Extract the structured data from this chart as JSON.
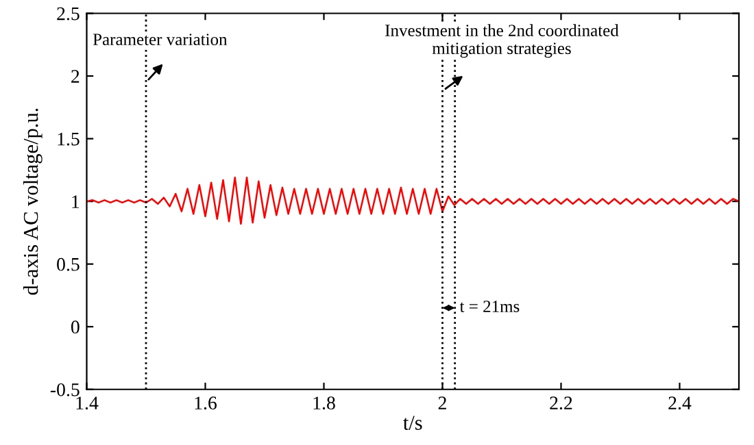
{
  "chart_data": {
    "type": "line",
    "xlabel": "t/s",
    "ylabel": "d-axis AC voltage/p.u.",
    "xlim": [
      1.4,
      2.5
    ],
    "xticks": [
      1.4,
      1.6,
      1.8,
      2,
      2.2,
      2.4
    ],
    "ylim": [
      -0.5,
      2.5
    ],
    "yticks": [
      -0.5,
      0,
      0.5,
      1,
      1.5,
      2,
      2.5
    ],
    "grid": false,
    "marker": "none",
    "line_style": "solid",
    "x": [
      1.4,
      1.41,
      1.42,
      1.43,
      1.44,
      1.45,
      1.46,
      1.47,
      1.48,
      1.49,
      1.5,
      1.51,
      1.52,
      1.53,
      1.54,
      1.55,
      1.56,
      1.57,
      1.58,
      1.59,
      1.6,
      1.61,
      1.62,
      1.63,
      1.64,
      1.65,
      1.66,
      1.67,
      1.68,
      1.69,
      1.7,
      1.71,
      1.72,
      1.73,
      1.74,
      1.75,
      1.76,
      1.77,
      1.78,
      1.79,
      1.8,
      1.81,
      1.82,
      1.83,
      1.84,
      1.85,
      1.86,
      1.87,
      1.88,
      1.89,
      1.9,
      1.91,
      1.92,
      1.93,
      1.94,
      1.95,
      1.96,
      1.97,
      1.98,
      1.99,
      2.0,
      2.01,
      2.02,
      2.03,
      2.04,
      2.05,
      2.06,
      2.07,
      2.08,
      2.09,
      2.1,
      2.11,
      2.12,
      2.13,
      2.14,
      2.15,
      2.16,
      2.17,
      2.18,
      2.19,
      2.2,
      2.21,
      2.22,
      2.23,
      2.24,
      2.25,
      2.26,
      2.27,
      2.28,
      2.29,
      2.3,
      2.31,
      2.32,
      2.33,
      2.34,
      2.35,
      2.36,
      2.37,
      2.38,
      2.39,
      2.4,
      2.41,
      2.42,
      2.43,
      2.44,
      2.45,
      2.46,
      2.47,
      2.48,
      2.49,
      2.5
    ],
    "series": [
      {
        "color": "#ff0000",
        "values": [
          1.0,
          1.01,
          0.99,
          1.01,
          0.99,
          1.01,
          0.99,
          1.01,
          0.99,
          1.01,
          0.99,
          1.02,
          0.98,
          1.03,
          0.96,
          1.06,
          0.92,
          1.1,
          0.9,
          1.13,
          0.88,
          1.15,
          0.86,
          1.17,
          0.84,
          1.19,
          0.82,
          1.19,
          0.83,
          1.16,
          0.87,
          1.13,
          0.89,
          1.11,
          0.9,
          1.1,
          0.9,
          1.1,
          0.9,
          1.1,
          0.9,
          1.1,
          0.9,
          1.1,
          0.9,
          1.1,
          0.9,
          1.1,
          0.9,
          1.1,
          0.9,
          1.1,
          0.9,
          1.11,
          0.9,
          1.1,
          0.9,
          1.1,
          0.9,
          1.1,
          0.92,
          1.04,
          0.97,
          1.02,
          0.98,
          1.02,
          0.98,
          1.02,
          0.98,
          1.02,
          0.98,
          1.02,
          0.98,
          1.02,
          0.98,
          1.02,
          0.98,
          1.02,
          0.98,
          1.02,
          0.98,
          1.02,
          0.98,
          1.02,
          0.98,
          1.02,
          0.98,
          1.02,
          0.98,
          1.02,
          0.98,
          1.02,
          0.98,
          1.02,
          0.98,
          1.02,
          0.98,
          1.02,
          0.98,
          1.02,
          0.98,
          1.02,
          0.98,
          1.02,
          0.98,
          1.02,
          0.98,
          1.02,
          0.98,
          1.02,
          1.0
        ]
      }
    ],
    "ref_lines": [
      {
        "axis": "x",
        "value": 1.5,
        "color": "#000000",
        "line_style": "dotted"
      },
      {
        "axis": "x",
        "value": 2.0,
        "color": "#000000",
        "line_style": "dotted"
      },
      {
        "axis": "x",
        "value": 2.021,
        "color": "#000000",
        "line_style": "dotted"
      }
    ],
    "annotations": [
      {
        "text": "Parameter variation",
        "x": 1.5,
        "y": 1.95
      },
      {
        "text": "Investment in the 2nd coordinated\nmitigation strategies",
        "x": 2.0,
        "y": 1.88
      },
      {
        "text": "t = 21ms",
        "x": 2.021,
        "y": 0.15
      }
    ]
  }
}
